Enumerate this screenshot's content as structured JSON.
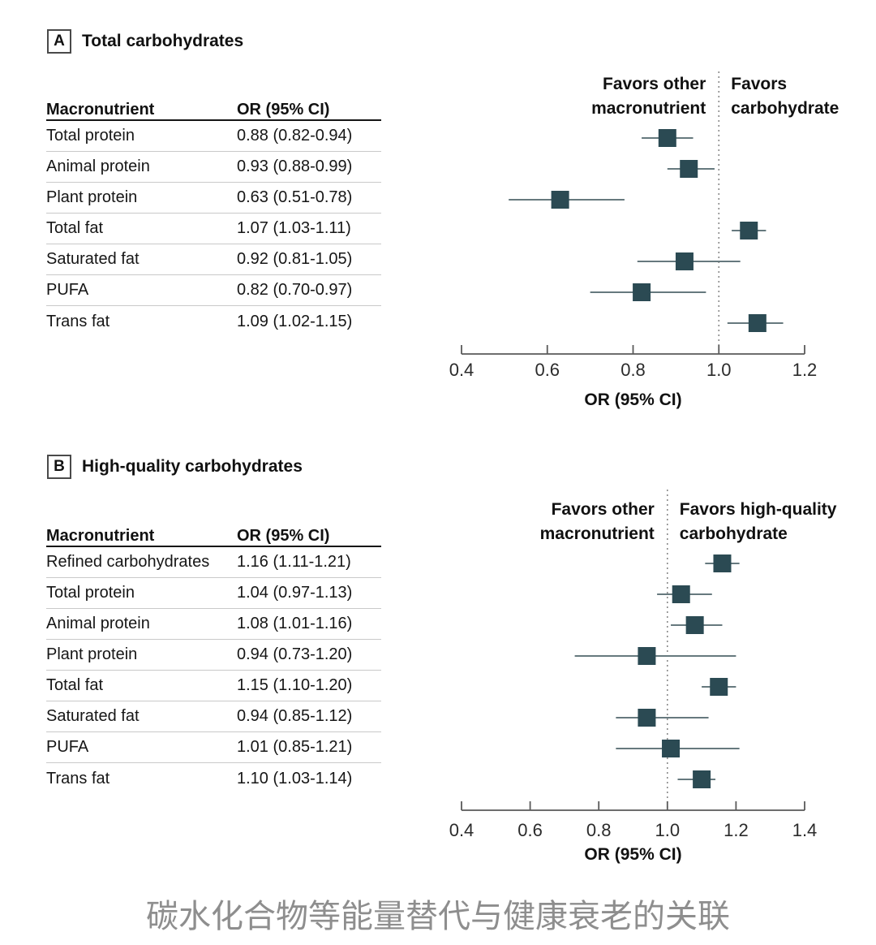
{
  "caption": "碳水化合物等能量替代与健康衰老的关联",
  "panels": [
    {
      "label": "A",
      "title": "Total carbohydrates",
      "table_headers": [
        "Macronutrient",
        "OR (95% CI)"
      ]
    },
    {
      "label": "B",
      "title": "High-quality carbohydrates",
      "table_headers": [
        "Macronutrient",
        "OR (95% CI)"
      ]
    }
  ],
  "colors": {
    "marker": "#2b4a53",
    "ci_line": "#66797e",
    "axis": "#5a5a5a",
    "reference_line": "#8a8a8a",
    "text": "#161616"
  },
  "chart_data": [
    {
      "type": "forest",
      "panel": "A",
      "title": "Total carbohydrates",
      "xlabel": "OR (95% CI)",
      "xlim": [
        0.4,
        1.2
      ],
      "xticks": [
        0.4,
        0.6,
        0.8,
        1.0,
        1.2
      ],
      "refline": 1.0,
      "left_label": "Favors other\nmacronutrient",
      "right_label": "Favors\ncarbohydrate",
      "items": [
        {
          "name": "Total protein",
          "or": 0.88,
          "lo": 0.82,
          "hi": 0.94,
          "label": "0.88 (0.82-0.94)"
        },
        {
          "name": "Animal protein",
          "or": 0.93,
          "lo": 0.88,
          "hi": 0.99,
          "label": "0.93 (0.88-0.99)"
        },
        {
          "name": "Plant protein",
          "or": 0.63,
          "lo": 0.51,
          "hi": 0.78,
          "label": "0.63 (0.51-0.78)"
        },
        {
          "name": "Total fat",
          "or": 1.07,
          "lo": 1.03,
          "hi": 1.11,
          "label": "1.07 (1.03-1.11)"
        },
        {
          "name": "Saturated fat",
          "or": 0.92,
          "lo": 0.81,
          "hi": 1.05,
          "label": "0.92 (0.81-1.05)"
        },
        {
          "name": "PUFA",
          "or": 0.82,
          "lo": 0.7,
          "hi": 0.97,
          "label": "0.82 (0.70-0.97)"
        },
        {
          "name": "Trans fat",
          "or": 1.09,
          "lo": 1.02,
          "hi": 1.15,
          "label": "1.09 (1.02-1.15)"
        }
      ]
    },
    {
      "type": "forest",
      "panel": "B",
      "title": "High-quality carbohydrates",
      "xlabel": "OR (95% CI)",
      "xlim": [
        0.4,
        1.4
      ],
      "xticks": [
        0.4,
        0.6,
        0.8,
        1.0,
        1.2,
        1.4
      ],
      "refline": 1.0,
      "left_label": "Favors other\nmacronutrient",
      "right_label": "Favors high-quality\ncarbohydrate",
      "items": [
        {
          "name": "Refined carbohydrates",
          "or": 1.16,
          "lo": 1.11,
          "hi": 1.21,
          "label": "1.16 (1.11-1.21)"
        },
        {
          "name": "Total protein",
          "or": 1.04,
          "lo": 0.97,
          "hi": 1.13,
          "label": "1.04 (0.97-1.13)"
        },
        {
          "name": "Animal protein",
          "or": 1.08,
          "lo": 1.01,
          "hi": 1.16,
          "label": "1.08 (1.01-1.16)"
        },
        {
          "name": "Plant protein",
          "or": 0.94,
          "lo": 0.73,
          "hi": 1.2,
          "label": "0.94 (0.73-1.20)"
        },
        {
          "name": "Total fat",
          "or": 1.15,
          "lo": 1.1,
          "hi": 1.2,
          "label": "1.15 (1.10-1.20)"
        },
        {
          "name": "Saturated fat",
          "or": 0.94,
          "lo": 0.85,
          "hi": 1.12,
          "label": "0.94 (0.85-1.12)"
        },
        {
          "name": "PUFA",
          "or": 1.01,
          "lo": 0.85,
          "hi": 1.21,
          "label": "1.01 (0.85-1.21)"
        },
        {
          "name": "Trans fat",
          "or": 1.1,
          "lo": 1.03,
          "hi": 1.14,
          "label": "1.10 (1.03-1.14)"
        }
      ]
    }
  ]
}
